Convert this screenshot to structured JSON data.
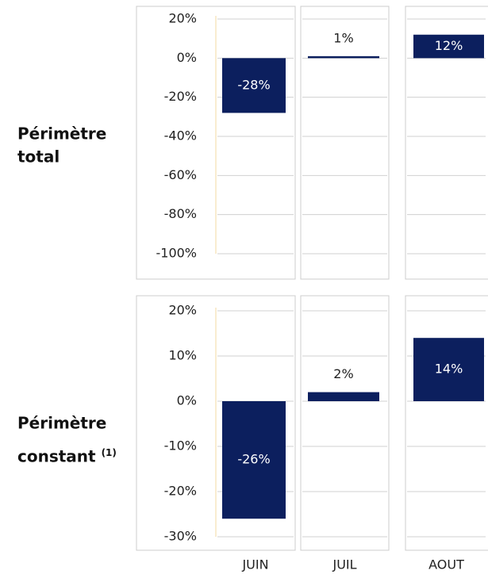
{
  "chart_data": [
    {
      "type": "bar",
      "title": "Périmètre total",
      "categories": [
        null,
        null,
        null
      ],
      "values": [
        -28,
        1,
        12
      ],
      "value_labels": [
        "-28%",
        "1%",
        "12%"
      ],
      "color": "#0c1f5e",
      "ylim": [
        -100,
        20
      ],
      "yticks": [
        {
          "value": 20,
          "label": "20%"
        },
        {
          "value": 0,
          "label": "0%"
        },
        {
          "value": -20,
          "label": "-20%"
        },
        {
          "value": -40,
          "label": "-40%"
        },
        {
          "value": -60,
          "label": "-60%"
        },
        {
          "value": -80,
          "label": "-80%"
        },
        {
          "value": -100,
          "label": "-100%"
        }
      ],
      "grid": true
    },
    {
      "type": "bar",
      "title": "Périmètre constant",
      "title_note": "(1)",
      "categories": [
        "JUIN",
        "JUIL",
        "AOUT"
      ],
      "values": [
        -26,
        2,
        14
      ],
      "value_labels": [
        "-26%",
        "2%",
        "14%"
      ],
      "color": "#0c1f5e",
      "ylim": [
        -30,
        20
      ],
      "yticks": [
        {
          "value": 20,
          "label": "20%"
        },
        {
          "value": 10,
          "label": "10%"
        },
        {
          "value": 0,
          "label": "0%"
        },
        {
          "value": -10,
          "label": "-10%"
        },
        {
          "value": -20,
          "label": "-20%"
        },
        {
          "value": -30,
          "label": "-30%"
        }
      ],
      "grid": true
    }
  ]
}
